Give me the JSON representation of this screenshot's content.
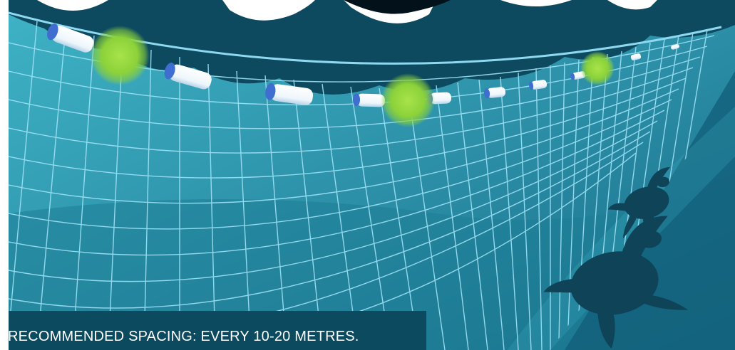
{
  "caption": {
    "text": "RECOMMENDED SPACING: EVERY 10-20 METRES."
  },
  "colors": {
    "water_light": "#37a9bd",
    "water_dark": "#0f5a73",
    "sky_band": "#0d4a5f",
    "net_line": "#9fe2f6",
    "float_body": "#ffffff",
    "float_cap": "#3f6ed0",
    "light_glow": "#8cd23a",
    "turtle": "#0f4358",
    "caption_bg": "#0c4a60"
  },
  "illustration": {
    "floats_count": 10,
    "lights_count": 3,
    "turtles_count": 2,
    "icons": [
      "gillnet-icon",
      "float-icon",
      "led-light-icon",
      "sea-turtle-icon"
    ]
  }
}
